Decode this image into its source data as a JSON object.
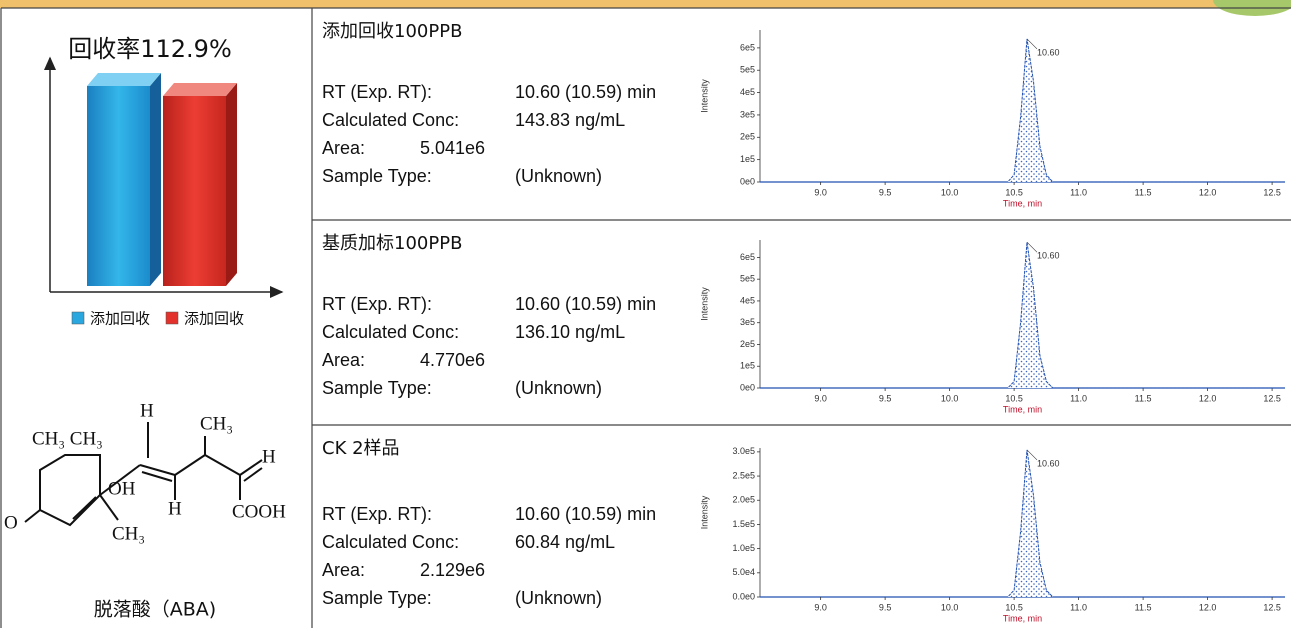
{
  "left": {
    "recovery_chart": {
      "type": "bar",
      "title": "回收率112.9%",
      "categories": [
        "添加回收",
        "添加回收"
      ],
      "values": [
        100,
        95
      ],
      "colors": [
        "#2aa7de",
        "#e2322b"
      ],
      "ylim": [
        0,
        110
      ]
    },
    "structure": {
      "labels": [
        "CH₃ CH₃",
        "H",
        "CH₃",
        "H",
        "OH",
        "H",
        "COOH",
        "O",
        "CH₃"
      ]
    },
    "compound": "脱落酸（ABA)"
  },
  "rows": [
    {
      "name": "添加回收100PPB",
      "fields": [
        [
          "RT (Exp. RT):",
          "10.60 (10.59) min"
        ],
        [
          "Calculated Conc:",
          "143.83 ng/mL"
        ],
        [
          "Area:",
          "5.041e6"
        ],
        [
          "Sample Type:",
          "(Unknown)"
        ]
      ],
      "chromatogram": {
        "type": "line",
        "x_label": "Time, min",
        "y_label": "Intensity",
        "peak_label": "10.60",
        "color": "#2050b0",
        "xlim": [
          8.53,
          12.6
        ],
        "xticks": [
          {
            "value": 9,
            "label": "9.0"
          },
          9.5,
          {
            "value": 10,
            "label": "10.0"
          },
          10.5,
          {
            "value": 11,
            "label": "11.0"
          },
          11.5,
          {
            "value": 12,
            "label": "12.0"
          },
          12.5
        ],
        "ylim": [
          0,
          680000
        ],
        "yticks": [
          {
            "value": 0,
            "label": "0e0"
          },
          {
            "value": 100000,
            "label": "1e5"
          },
          {
            "value": 200000,
            "label": "2e5"
          },
          {
            "value": 300000,
            "label": "3e5"
          },
          {
            "value": 400000,
            "label": "4e5"
          },
          {
            "value": 500000,
            "label": "5e5"
          },
          {
            "value": 600000,
            "label": "6e5"
          }
        ],
        "x": [
          8.6,
          10.45,
          10.5,
          10.55,
          10.6,
          10.65,
          10.7,
          10.75,
          10.8,
          12.6
        ],
        "values": [
          0,
          0,
          32000,
          290000,
          640000,
          450000,
          160000,
          32000,
          0,
          0
        ]
      }
    },
    {
      "name": "基质加标100PPB",
      "fields": [
        [
          "RT (Exp. RT):",
          "10.60 (10.59) min"
        ],
        [
          "Calculated Conc:",
          "136.10 ng/mL"
        ],
        [
          "Area:",
          "4.770e6"
        ],
        [
          "Sample Type:",
          "(Unknown)"
        ]
      ],
      "chromatogram": {
        "type": "line",
        "x_label": "Time, min",
        "y_label": "Intensity",
        "peak_label": "10.60",
        "color": "#2050b0",
        "xlim": [
          8.53,
          12.6
        ],
        "xticks": [
          {
            "value": 9,
            "label": "9.0"
          },
          9.5,
          {
            "value": 10,
            "label": "10.0"
          },
          10.5,
          {
            "value": 11,
            "label": "11.0"
          },
          11.5,
          {
            "value": 12,
            "label": "12.0"
          },
          12.5
        ],
        "ylim": [
          0,
          680000
        ],
        "yticks": [
          {
            "value": 0,
            "label": "0e0"
          },
          {
            "value": 100000,
            "label": "1e5"
          },
          {
            "value": 200000,
            "label": "2e5"
          },
          {
            "value": 300000,
            "label": "3e5"
          },
          {
            "value": 400000,
            "label": "4e5"
          },
          {
            "value": 500000,
            "label": "5e5"
          },
          {
            "value": 600000,
            "label": "6e5"
          }
        ],
        "x": [
          8.6,
          10.45,
          10.5,
          10.55,
          10.6,
          10.65,
          10.7,
          10.75,
          10.8,
          12.6
        ],
        "values": [
          0,
          0,
          30000,
          300000,
          670000,
          460000,
          150000,
          30000,
          0,
          0
        ]
      }
    },
    {
      "name": "CK 2样品",
      "fields": [
        [
          "RT (Exp. RT):",
          "10.60 (10.59) min"
        ],
        [
          "Calculated Conc:",
          "60.84 ng/mL"
        ],
        [
          "Area:",
          "2.129e6"
        ],
        [
          "Sample Type:",
          "(Unknown)"
        ]
      ],
      "chromatogram": {
        "type": "line",
        "x_label": "Time, min",
        "y_label": "Intensity",
        "peak_label": "10.60",
        "color": "#2050b0",
        "xlim": [
          8.53,
          12.6
        ],
        "xticks": [
          {
            "value": 9,
            "label": "9.0"
          },
          9.5,
          {
            "value": 10,
            "label": "10.0"
          },
          10.5,
          {
            "value": 11,
            "label": "11.0"
          },
          11.5,
          {
            "value": 12,
            "label": "12.0"
          },
          12.5
        ],
        "ylim": [
          0,
          308000
        ],
        "yticks": [
          {
            "value": 0,
            "label": "0.0e0"
          },
          {
            "value": 50000,
            "label": "5.0e4"
          },
          {
            "value": 100000,
            "label": "1.0e5"
          },
          {
            "value": 150000,
            "label": "1.5e5"
          },
          {
            "value": 200000,
            "label": "2.0e5"
          },
          {
            "value": 250000,
            "label": "2.5e5"
          },
          {
            "value": 300000,
            "label": "3.0e5"
          }
        ],
        "x": [
          8.6,
          10.45,
          10.5,
          10.55,
          10.6,
          10.65,
          10.7,
          10.75,
          10.8,
          12.6
        ],
        "values": [
          0,
          0,
          14000,
          135000,
          304000,
          210000,
          72000,
          14000,
          0,
          0
        ]
      }
    }
  ]
}
